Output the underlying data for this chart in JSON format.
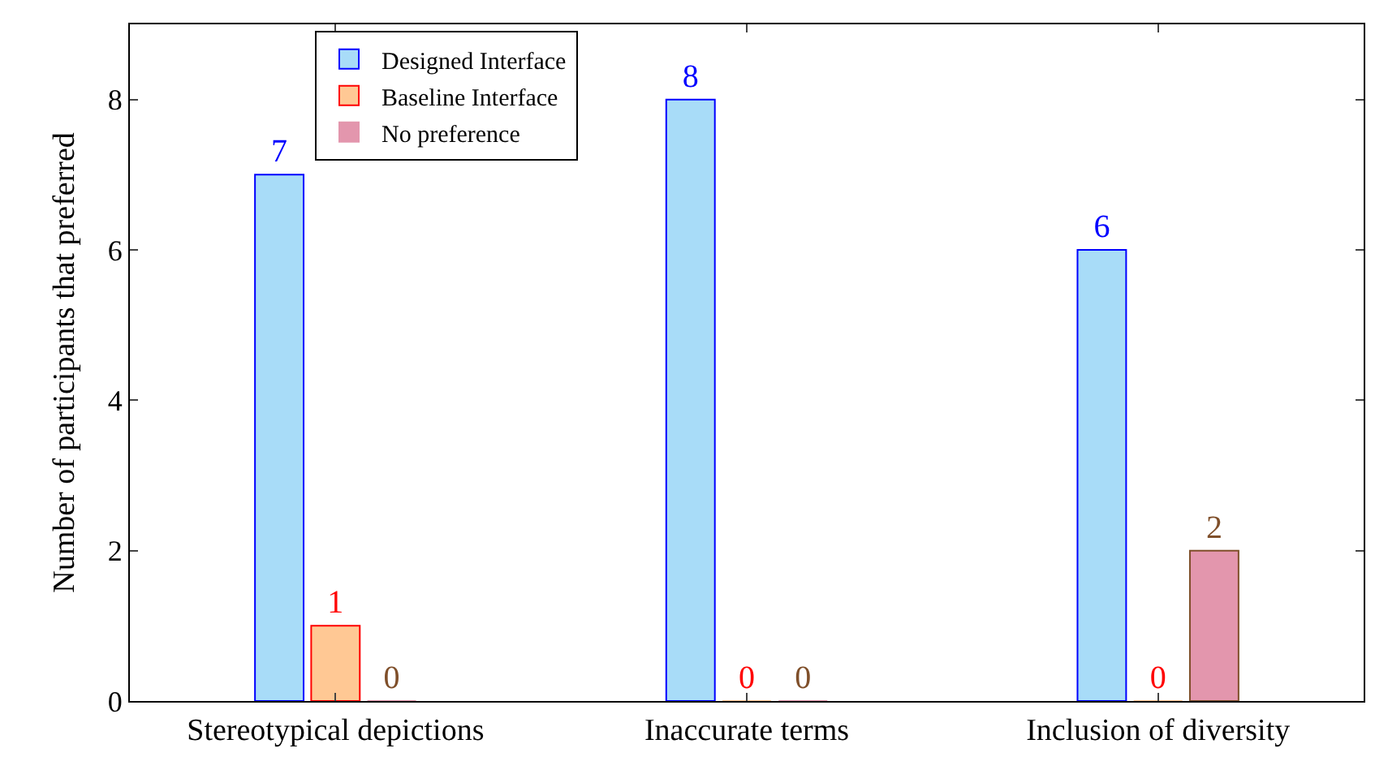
{
  "chart_data": {
    "type": "bar",
    "ylabel": "Number of participants that preferred",
    "categories": [
      "Stereotypical depictions",
      "Inaccurate terms",
      "Inclusion of diversity"
    ],
    "series": [
      {
        "name": "Designed Interface",
        "color": "#a8dcf8",
        "values": [
          7,
          8,
          6
        ]
      },
      {
        "name": "Baseline Interface",
        "color": "#ffc894",
        "values": [
          1,
          0,
          0
        ]
      },
      {
        "name": "No preference",
        "color": "#e396ad",
        "values": [
          0,
          0,
          2
        ]
      }
    ],
    "ylim": [
      0,
      9
    ],
    "yticks": [
      0,
      2,
      4,
      6,
      8
    ],
    "data_labels": true,
    "legend": "top left"
  }
}
